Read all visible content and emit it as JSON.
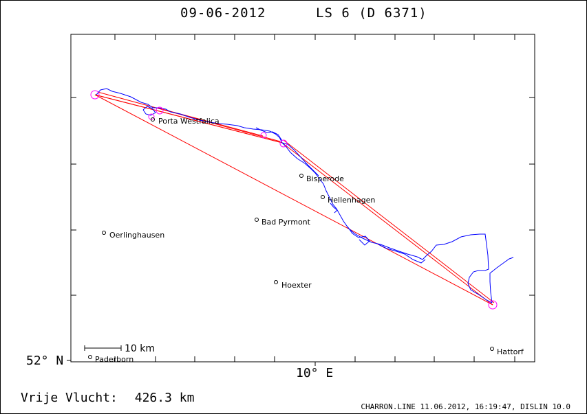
{
  "header": {
    "date": "09-06-2012",
    "glider": "LS 6 (D 6371)"
  },
  "axes": {
    "lat_label": "52° N",
    "lon_label": "10° E"
  },
  "scale_bar": {
    "label": "10 km"
  },
  "places": [
    {
      "name": "Porta Westfalica"
    },
    {
      "name": "Bisperode"
    },
    {
      "name": "Hellenhagen"
    },
    {
      "name": "Bad Pyrmont"
    },
    {
      "name": "Oerlinghausen"
    },
    {
      "name": "Hoexter"
    },
    {
      "name": "Paderborn"
    },
    {
      "name": "Hattorf"
    }
  ],
  "footer": {
    "distance_label": "Vrije Vlucht:",
    "distance_value": "426.3 km",
    "credit": "CHARRON.LINE 11.06.2012, 16:19:47, DISLIN 10.0"
  },
  "colors": {
    "track": "#0000ff",
    "task_line": "#ff0000",
    "turnpoint": "#ff00ff",
    "frame": "#000000"
  }
}
